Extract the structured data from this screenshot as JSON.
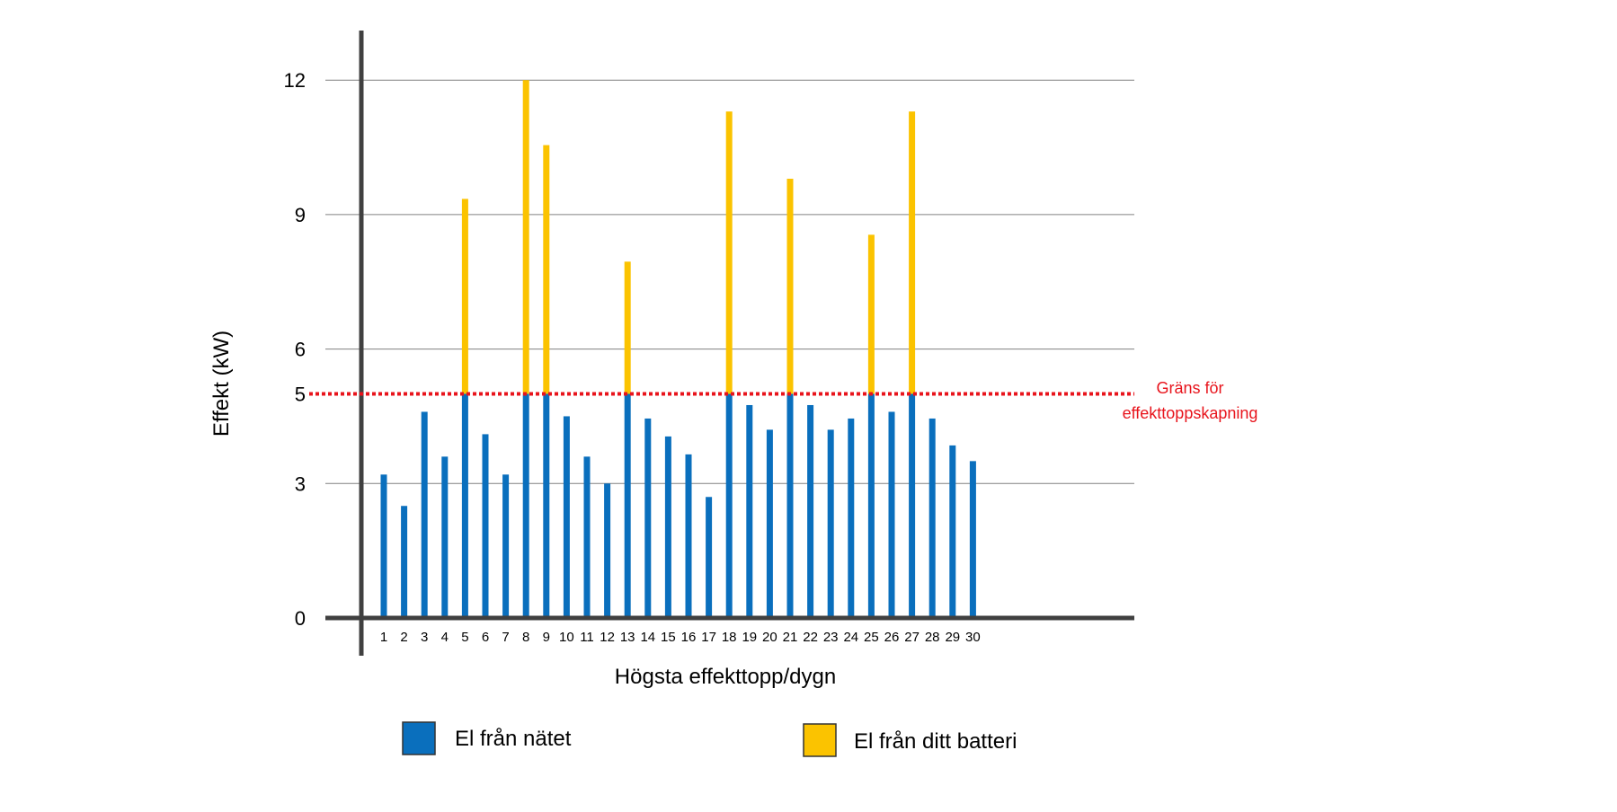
{
  "chart_data": {
    "type": "bar",
    "stacked": true,
    "title": "",
    "xlabel": "Högsta effekttopp/dygn",
    "ylabel": "Effekt (kW)",
    "ylim": [
      0,
      13
    ],
    "yticks": [
      0,
      3,
      5,
      6,
      9,
      12
    ],
    "gridlines_at": [
      3,
      6,
      9,
      12
    ],
    "grid": true,
    "categories": [
      "1",
      "2",
      "3",
      "4",
      "5",
      "6",
      "7",
      "8",
      "9",
      "10",
      "11",
      "12",
      "13",
      "14",
      "15",
      "16",
      "17",
      "18",
      "19",
      "20",
      "21",
      "22",
      "23",
      "24",
      "25",
      "26",
      "27",
      "28",
      "29",
      "30"
    ],
    "series": [
      {
        "name": "El från nätet",
        "color": "#0a6fbd",
        "values": [
          3.2,
          2.5,
          4.6,
          3.6,
          5.0,
          4.1,
          3.2,
          5.0,
          5.0,
          4.5,
          3.6,
          3.0,
          5.0,
          4.45,
          4.05,
          3.65,
          2.7,
          5.0,
          4.75,
          4.2,
          5.0,
          4.75,
          4.2,
          4.45,
          5.0,
          4.6,
          5.0,
          4.45,
          3.85,
          3.5
        ]
      },
      {
        "name": "El från ditt batteri",
        "color": "#fbc300",
        "values": [
          0,
          0,
          0,
          0,
          4.35,
          0,
          0,
          7.0,
          5.55,
          0,
          0,
          0,
          2.95,
          0,
          0,
          0,
          0,
          6.3,
          0,
          0,
          4.8,
          0,
          0,
          0,
          3.55,
          0,
          6.3,
          0,
          0,
          0
        ]
      }
    ],
    "threshold": {
      "value": 5,
      "color": "#e8141c",
      "label_line1": "Gräns för",
      "label_line2": "effekttoppskapning"
    },
    "legend_position": "bottom",
    "colors": {
      "axis": "#404040",
      "grid": "#808080",
      "text": "#000000"
    }
  }
}
